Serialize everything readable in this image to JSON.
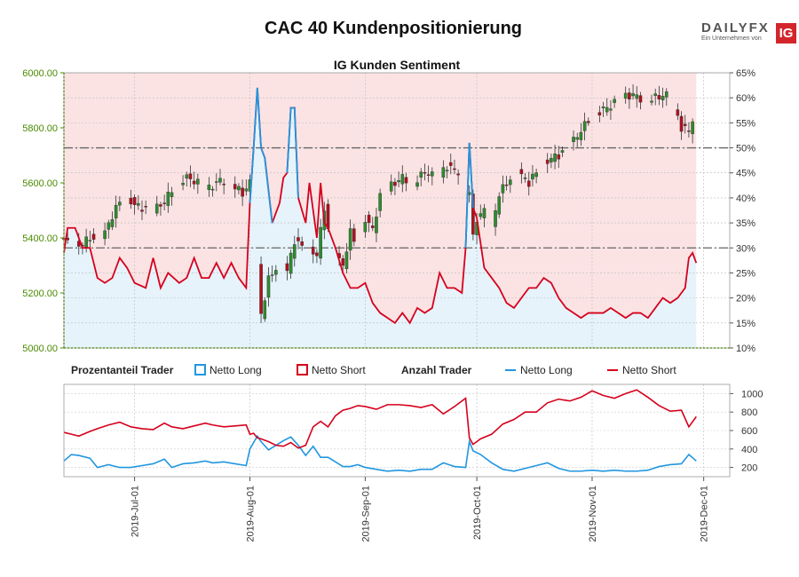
{
  "title": "CAC 40 Kundenpositionierung",
  "subtitle": "IG Kunden Sentiment",
  "logo": {
    "word": "DAILYFX",
    "sub": "Ein Unternehmen von",
    "badge": "IG"
  },
  "colors": {
    "long": "#2196e0",
    "short": "#d6001c",
    "candle_up": "#2e8b2e",
    "candle_down": "#b0101e",
    "long_bg": "#e6f3fb",
    "short_bg": "#fbe3e4",
    "price_axis": "#4a8a00"
  },
  "legend": {
    "pct_header": "Prozentanteil Trader",
    "pct_long": "Netto Long",
    "pct_short": "Netto Short",
    "count_header": "Anzahl Trader",
    "count_long": "Netto Long",
    "count_short": "Netto Short"
  },
  "chart_data": [
    {
      "type": "candlestick",
      "title": "IG Kunden Sentiment",
      "y_left_label": "",
      "y_right_label": "",
      "ylim_price": [
        5000,
        6000
      ],
      "yticks_price": [
        "5000.00",
        "5200.00",
        "5400.00",
        "5600.00",
        "5800.00",
        "6000.00"
      ],
      "ylim_pct": [
        10,
        65
      ],
      "yticks_pct": [
        "10%",
        "15%",
        "20%",
        "25%",
        "30%",
        "35%",
        "40%",
        "45%",
        "50%",
        "55%",
        "60%",
        "65%"
      ],
      "reference_lines": {
        "pct_50": 50,
        "pct_30": 30
      },
      "x_ticks": [
        "2019-Jul-01",
        "2019-Aug-01",
        "2019-Sep-01",
        "2019-Oct-01",
        "2019-Nov-01",
        "2019-Dec-01"
      ],
      "x_range_days": [
        -19,
        160
      ],
      "close_series": [
        [
          -19,
          5390
        ],
        [
          -15,
          5370
        ],
        [
          -12,
          5400
        ],
        [
          -9,
          5390
        ],
        [
          -6,
          5480
        ],
        [
          -3,
          5560
        ],
        [
          0,
          5520
        ],
        [
          2,
          5510
        ],
        [
          5,
          5500
        ],
        [
          8,
          5530
        ],
        [
          11,
          5600
        ],
        [
          14,
          5620
        ],
        [
          17,
          5600
        ],
        [
          20,
          5580
        ],
        [
          23,
          5610
        ],
        [
          26,
          5600
        ],
        [
          29,
          5560
        ],
        [
          31,
          5600
        ],
        [
          32,
          5450
        ],
        [
          33,
          5300
        ],
        [
          34,
          5120
        ],
        [
          36,
          5250
        ],
        [
          39,
          5310
        ],
        [
          41,
          5280
        ],
        [
          43,
          5390
        ],
        [
          46,
          5360
        ],
        [
          49,
          5340
        ],
        [
          51,
          5510
        ],
        [
          53,
          5350
        ],
        [
          56,
          5300
        ],
        [
          58,
          5420
        ],
        [
          60,
          5370
        ],
        [
          62,
          5470
        ],
        [
          64,
          5430
        ],
        [
          66,
          5550
        ],
        [
          69,
          5590
        ],
        [
          72,
          5620
        ],
        [
          75,
          5600
        ],
        [
          78,
          5640
        ],
        [
          81,
          5620
        ],
        [
          84,
          5660
        ],
        [
          87,
          5640
        ],
        [
          88,
          5560
        ],
        [
          90,
          5570
        ],
        [
          91,
          5400
        ],
        [
          92,
          5470
        ],
        [
          94,
          5500
        ],
        [
          96,
          5440
        ],
        [
          98,
          5560
        ],
        [
          100,
          5600
        ],
        [
          103,
          5640
        ],
        [
          106,
          5600
        ],
        [
          109,
          5660
        ],
        [
          112,
          5690
        ],
        [
          114,
          5700
        ],
        [
          116,
          5720
        ],
        [
          119,
          5770
        ],
        [
          122,
          5830
        ],
        [
          125,
          5860
        ],
        [
          128,
          5880
        ],
        [
          131,
          5910
        ],
        [
          134,
          5920
        ],
        [
          137,
          5900
        ],
        [
          140,
          5910
        ],
        [
          143,
          5920
        ],
        [
          145,
          5880
        ],
        [
          147,
          5800
        ],
        [
          149,
          5790
        ],
        [
          151,
          5870
        ]
      ],
      "net_long_pct": [
        [
          -19,
          29
        ],
        [
          -18,
          34
        ],
        [
          -16,
          34
        ],
        [
          -14,
          30
        ],
        [
          -12,
          30
        ],
        [
          -10,
          24
        ],
        [
          -8,
          23
        ],
        [
          -6,
          24
        ],
        [
          -4,
          28
        ],
        [
          -2,
          26
        ],
        [
          0,
          23
        ],
        [
          3,
          22
        ],
        [
          5,
          28
        ],
        [
          7,
          22
        ],
        [
          9,
          25
        ],
        [
          12,
          23
        ],
        [
          14,
          24
        ],
        [
          16,
          28
        ],
        [
          18,
          24
        ],
        [
          20,
          24
        ],
        [
          22,
          27
        ],
        [
          24,
          24
        ],
        [
          26,
          27
        ],
        [
          28,
          24
        ],
        [
          30,
          22
        ],
        [
          31,
          39
        ],
        [
          32,
          50
        ],
        [
          33,
          62
        ],
        [
          34,
          50
        ],
        [
          35,
          48
        ],
        [
          37,
          35
        ],
        [
          39,
          39
        ],
        [
          40,
          44
        ],
        [
          41,
          45
        ],
        [
          42,
          58
        ],
        [
          43,
          58
        ],
        [
          44,
          40
        ],
        [
          46,
          35
        ],
        [
          47,
          43
        ],
        [
          49,
          32
        ],
        [
          50,
          43
        ],
        [
          51,
          35
        ],
        [
          52,
          34
        ],
        [
          54,
          30
        ],
        [
          56,
          25
        ],
        [
          58,
          22
        ],
        [
          60,
          22
        ],
        [
          62,
          23
        ],
        [
          64,
          19
        ],
        [
          66,
          17
        ],
        [
          68,
          16
        ],
        [
          70,
          15
        ],
        [
          72,
          17
        ],
        [
          74,
          15
        ],
        [
          76,
          18
        ],
        [
          78,
          17
        ],
        [
          80,
          18
        ],
        [
          82,
          25
        ],
        [
          84,
          22
        ],
        [
          86,
          22
        ],
        [
          88,
          21
        ],
        [
          89,
          30
        ],
        [
          90,
          51
        ],
        [
          91,
          38
        ],
        [
          92,
          36
        ],
        [
          94,
          26
        ],
        [
          96,
          24
        ],
        [
          98,
          22
        ],
        [
          100,
          19
        ],
        [
          102,
          18
        ],
        [
          104,
          20
        ],
        [
          106,
          22
        ],
        [
          108,
          22
        ],
        [
          110,
          24
        ],
        [
          112,
          23
        ],
        [
          114,
          20
        ],
        [
          116,
          18
        ],
        [
          118,
          17
        ],
        [
          120,
          16
        ],
        [
          122,
          17
        ],
        [
          124,
          17
        ],
        [
          126,
          17
        ],
        [
          128,
          18
        ],
        [
          130,
          17
        ],
        [
          132,
          16
        ],
        [
          134,
          17
        ],
        [
          136,
          17
        ],
        [
          138,
          16
        ],
        [
          140,
          18
        ],
        [
          142,
          20
        ],
        [
          144,
          19
        ],
        [
          146,
          20
        ],
        [
          148,
          22
        ],
        [
          149,
          28
        ],
        [
          150,
          29
        ],
        [
          151,
          27
        ]
      ]
    },
    {
      "type": "line",
      "title": "Anzahl Trader",
      "ylim": [
        100,
        1100
      ],
      "yticks": [
        "200",
        "400",
        "600",
        "800",
        "1000"
      ],
      "series": [
        {
          "name": "Netto Long",
          "values": [
            [
              -19,
              270
            ],
            [
              -17,
              340
            ],
            [
              -15,
              330
            ],
            [
              -12,
              300
            ],
            [
              -10,
              200
            ],
            [
              -7,
              230
            ],
            [
              -4,
              200
            ],
            [
              -1,
              200
            ],
            [
              2,
              220
            ],
            [
              5,
              240
            ],
            [
              8,
              290
            ],
            [
              10,
              200
            ],
            [
              13,
              240
            ],
            [
              16,
              250
            ],
            [
              19,
              270
            ],
            [
              21,
              250
            ],
            [
              24,
              260
            ],
            [
              27,
              240
            ],
            [
              30,
              220
            ],
            [
              31,
              400
            ],
            [
              32,
              470
            ],
            [
              33,
              540
            ],
            [
              34,
              480
            ],
            [
              36,
              390
            ],
            [
              38,
              440
            ],
            [
              40,
              490
            ],
            [
              42,
              530
            ],
            [
              44,
              440
            ],
            [
              46,
              330
            ],
            [
              48,
              430
            ],
            [
              50,
              310
            ],
            [
              52,
              310
            ],
            [
              54,
              260
            ],
            [
              56,
              210
            ],
            [
              58,
              210
            ],
            [
              60,
              230
            ],
            [
              62,
              200
            ],
            [
              65,
              180
            ],
            [
              68,
              160
            ],
            [
              71,
              170
            ],
            [
              74,
              160
            ],
            [
              77,
              180
            ],
            [
              80,
              180
            ],
            [
              83,
              250
            ],
            [
              86,
              210
            ],
            [
              89,
              200
            ],
            [
              90,
              480
            ],
            [
              91,
              380
            ],
            [
              93,
              340
            ],
            [
              96,
              250
            ],
            [
              99,
              180
            ],
            [
              102,
              160
            ],
            [
              105,
              190
            ],
            [
              108,
              220
            ],
            [
              111,
              250
            ],
            [
              114,
              190
            ],
            [
              117,
              160
            ],
            [
              120,
              160
            ],
            [
              123,
              170
            ],
            [
              126,
              160
            ],
            [
              129,
              170
            ],
            [
              132,
              160
            ],
            [
              135,
              160
            ],
            [
              138,
              170
            ],
            [
              141,
              210
            ],
            [
              144,
              230
            ],
            [
              147,
              240
            ],
            [
              149,
              340
            ],
            [
              151,
              270
            ]
          ]
        },
        {
          "name": "Netto Short",
          "values": [
            [
              -19,
              580
            ],
            [
              -17,
              560
            ],
            [
              -15,
              540
            ],
            [
              -12,
              590
            ],
            [
              -10,
              620
            ],
            [
              -7,
              660
            ],
            [
              -4,
              690
            ],
            [
              -1,
              640
            ],
            [
              2,
              620
            ],
            [
              5,
              610
            ],
            [
              8,
              680
            ],
            [
              10,
              640
            ],
            [
              13,
              620
            ],
            [
              16,
              650
            ],
            [
              19,
              680
            ],
            [
              21,
              660
            ],
            [
              24,
              640
            ],
            [
              27,
              650
            ],
            [
              30,
              660
            ],
            [
              31,
              560
            ],
            [
              32,
              570
            ],
            [
              33,
              520
            ],
            [
              34,
              510
            ],
            [
              36,
              480
            ],
            [
              38,
              440
            ],
            [
              40,
              430
            ],
            [
              42,
              470
            ],
            [
              44,
              410
            ],
            [
              46,
              440
            ],
            [
              48,
              640
            ],
            [
              50,
              700
            ],
            [
              52,
              640
            ],
            [
              54,
              760
            ],
            [
              56,
              820
            ],
            [
              58,
              840
            ],
            [
              60,
              870
            ],
            [
              62,
              860
            ],
            [
              65,
              830
            ],
            [
              68,
              880
            ],
            [
              71,
              880
            ],
            [
              74,
              870
            ],
            [
              77,
              850
            ],
            [
              80,
              880
            ],
            [
              83,
              780
            ],
            [
              86,
              860
            ],
            [
              89,
              950
            ],
            [
              90,
              520
            ],
            [
              91,
              450
            ],
            [
              93,
              510
            ],
            [
              96,
              560
            ],
            [
              99,
              670
            ],
            [
              102,
              720
            ],
            [
              105,
              800
            ],
            [
              108,
              800
            ],
            [
              111,
              900
            ],
            [
              114,
              940
            ],
            [
              117,
              920
            ],
            [
              120,
              960
            ],
            [
              123,
              1030
            ],
            [
              126,
              980
            ],
            [
              129,
              950
            ],
            [
              132,
              1000
            ],
            [
              135,
              1040
            ],
            [
              138,
              960
            ],
            [
              141,
              870
            ],
            [
              144,
              810
            ],
            [
              147,
              820
            ],
            [
              149,
              640
            ],
            [
              151,
              750
            ]
          ]
        }
      ]
    }
  ]
}
